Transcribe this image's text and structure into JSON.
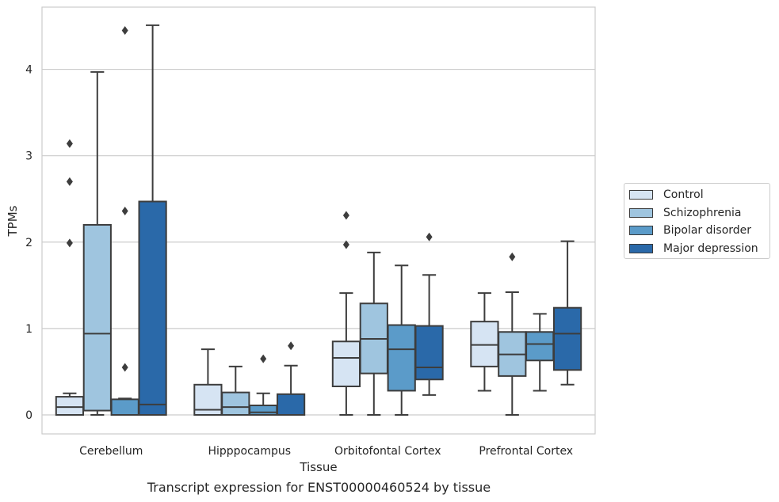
{
  "chart_data": {
    "type": "box",
    "caption": "Transcript expression for ENST00000460524 by tissue",
    "xlabel": "Tissue",
    "ylabel": "TPMs",
    "ylim": [
      -0.22,
      4.72
    ],
    "yticks": [
      0,
      1,
      2,
      3,
      4
    ],
    "grid": "horizontal",
    "legend_position": "right",
    "categories": [
      "Cerebellum",
      "Hipppocampus",
      "Orbitofontal Cortex",
      "Prefrontal Cortex"
    ],
    "series": [
      {
        "name": "Control",
        "color": "#d6e4f3",
        "boxes": [
          {
            "whisker_low": 0,
            "q1": 0,
            "median": 0.09,
            "q3": 0.21,
            "whisker_high": 0.25,
            "outliers": [
              3.14,
              2.7,
              1.99
            ]
          },
          {
            "whisker_low": 0,
            "q1": 0,
            "median": 0.06,
            "q3": 0.35,
            "whisker_high": 0.76,
            "outliers": []
          },
          {
            "whisker_low": 0,
            "q1": 0.33,
            "median": 0.66,
            "q3": 0.85,
            "whisker_high": 1.41,
            "outliers": [
              2.31,
              1.97
            ]
          },
          {
            "whisker_low": 0.28,
            "q1": 0.56,
            "median": 0.81,
            "q3": 1.08,
            "whisker_high": 1.41,
            "outliers": []
          }
        ]
      },
      {
        "name": "Schizophrenia",
        "color": "#9fc5df",
        "boxes": [
          {
            "whisker_low": 0,
            "q1": 0.05,
            "median": 0.94,
            "q3": 2.2,
            "whisker_high": 3.97,
            "outliers": []
          },
          {
            "whisker_low": 0,
            "q1": 0,
            "median": 0.09,
            "q3": 0.26,
            "whisker_high": 0.56,
            "outliers": []
          },
          {
            "whisker_low": 0,
            "q1": 0.48,
            "median": 0.88,
            "q3": 1.29,
            "whisker_high": 1.88,
            "outliers": []
          },
          {
            "whisker_low": 0,
            "q1": 0.45,
            "median": 0.7,
            "q3": 0.96,
            "whisker_high": 1.42,
            "outliers": [
              1.83
            ]
          }
        ]
      },
      {
        "name": "Bipolar disorder",
        "color": "#5b9bc9",
        "boxes": [
          {
            "whisker_low": 0,
            "q1": 0,
            "median": 0,
            "q3": 0.18,
            "whisker_high": 0.19,
            "outliers": [
              4.45,
              2.36,
              0.55
            ]
          },
          {
            "whisker_low": 0,
            "q1": 0,
            "median": 0.03,
            "q3": 0.11,
            "whisker_high": 0.25,
            "outliers": [
              0.65
            ]
          },
          {
            "whisker_low": 0,
            "q1": 0.28,
            "median": 0.76,
            "q3": 1.04,
            "whisker_high": 1.73,
            "outliers": []
          },
          {
            "whisker_low": 0.28,
            "q1": 0.63,
            "median": 0.82,
            "q3": 0.96,
            "whisker_high": 1.17,
            "outliers": []
          }
        ]
      },
      {
        "name": "Major depression",
        "color": "#2a69a9",
        "boxes": [
          {
            "whisker_low": 0,
            "q1": 0,
            "median": 0.12,
            "q3": 2.47,
            "whisker_high": 4.51,
            "outliers": []
          },
          {
            "whisker_low": 0,
            "q1": 0,
            "median": 0,
            "q3": 0.24,
            "whisker_high": 0.57,
            "outliers": [
              0.8
            ]
          },
          {
            "whisker_low": 0.23,
            "q1": 0.41,
            "median": 0.55,
            "q3": 1.03,
            "whisker_high": 1.62,
            "outliers": [
              2.06
            ]
          },
          {
            "whisker_low": 0.35,
            "q1": 0.52,
            "median": 0.94,
            "q3": 1.24,
            "whisker_high": 2.01,
            "outliers": []
          }
        ]
      }
    ]
  }
}
